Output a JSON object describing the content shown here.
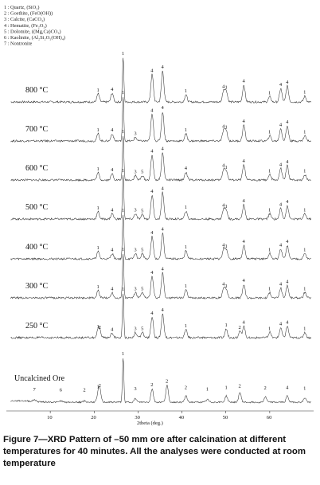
{
  "chart_data": {
    "type": "line",
    "xlabel": "2theta (deg.)",
    "xlim": [
      0,
      70
    ],
    "x_ticks": [
      "10",
      "20",
      "30",
      "40",
      "50",
      "60"
    ],
    "legend": [
      "1 : Quartz, (SiO₂)",
      "2 : Goethite, (FeO(OH))",
      "3 : Calcite, (CaCO₃)",
      "4 : Hematite, (Fe₂O₃)",
      "5 : Dolomite, ((Mg,Ca)CO₃)",
      "6 : Kaolinite, (Al₂Si₂O₅(OH)₄)",
      "7 : Nontronite"
    ],
    "series": [
      {
        "name": "800 °C",
        "peaks": [
          {
            "x": 20.9,
            "h": 0.18,
            "label": "1"
          },
          {
            "x": 24.1,
            "h": 0.2,
            "label": "4"
          },
          {
            "x": 26.6,
            "h": 1.0,
            "label": "1"
          },
          {
            "x": 33.2,
            "h": 0.62,
            "label": "4"
          },
          {
            "x": 35.6,
            "h": 0.7,
            "label": "4"
          },
          {
            "x": 40.9,
            "h": 0.16,
            "label": "1"
          },
          {
            "x": 49.5,
            "h": 0.26,
            "label": "4"
          },
          {
            "x": 50.1,
            "h": 0.24,
            "label": "1"
          },
          {
            "x": 54.1,
            "h": 0.38,
            "label": "4"
          },
          {
            "x": 60.0,
            "h": 0.12,
            "label": "1"
          },
          {
            "x": 62.5,
            "h": 0.3,
            "label": "4"
          },
          {
            "x": 64.0,
            "h": 0.36,
            "label": "4"
          },
          {
            "x": 68.0,
            "h": 0.13,
            "label": "1"
          }
        ]
      },
      {
        "name": "700 °C",
        "peaks": [
          {
            "x": 20.9,
            "h": 0.16,
            "label": "1"
          },
          {
            "x": 24.1,
            "h": 0.16,
            "label": "4"
          },
          {
            "x": 26.6,
            "h": 1.0,
            "label": "1"
          },
          {
            "x": 29.4,
            "h": 0.08,
            "label": "3"
          },
          {
            "x": 33.2,
            "h": 0.6,
            "label": "4"
          },
          {
            "x": 35.6,
            "h": 0.66,
            "label": "4"
          },
          {
            "x": 40.9,
            "h": 0.16,
            "label": "1"
          },
          {
            "x": 49.5,
            "h": 0.24,
            "label": "4"
          },
          {
            "x": 50.1,
            "h": 0.22,
            "label": "1"
          },
          {
            "x": 54.1,
            "h": 0.36,
            "label": "4"
          },
          {
            "x": 60.0,
            "h": 0.12,
            "label": "1"
          },
          {
            "x": 62.5,
            "h": 0.28,
            "label": "4"
          },
          {
            "x": 64.0,
            "h": 0.34,
            "label": "4"
          },
          {
            "x": 68.0,
            "h": 0.12,
            "label": "1"
          }
        ]
      },
      {
        "name": "600 °C",
        "peaks": [
          {
            "x": 20.9,
            "h": 0.16,
            "label": "1"
          },
          {
            "x": 24.1,
            "h": 0.14,
            "label": "4"
          },
          {
            "x": 26.6,
            "h": 1.0,
            "label": "1"
          },
          {
            "x": 29.4,
            "h": 0.1,
            "label": "3"
          },
          {
            "x": 31.0,
            "h": 0.1,
            "label": "5"
          },
          {
            "x": 33.2,
            "h": 0.56,
            "label": "4"
          },
          {
            "x": 35.6,
            "h": 0.62,
            "label": "4"
          },
          {
            "x": 40.9,
            "h": 0.18,
            "label": "4"
          },
          {
            "x": 49.5,
            "h": 0.24,
            "label": "4"
          },
          {
            "x": 50.1,
            "h": 0.2,
            "label": "1"
          },
          {
            "x": 54.1,
            "h": 0.34,
            "label": "4"
          },
          {
            "x": 60.0,
            "h": 0.12,
            "label": "1"
          },
          {
            "x": 62.5,
            "h": 0.26,
            "label": "4"
          },
          {
            "x": 64.0,
            "h": 0.32,
            "label": "4"
          },
          {
            "x": 68.0,
            "h": 0.12,
            "label": "1"
          }
        ]
      },
      {
        "name": "500 °C",
        "peaks": [
          {
            "x": 20.9,
            "h": 0.16,
            "label": "1"
          },
          {
            "x": 24.1,
            "h": 0.12,
            "label": "4"
          },
          {
            "x": 26.6,
            "h": 1.0,
            "label": "1"
          },
          {
            "x": 29.4,
            "h": 0.12,
            "label": "3"
          },
          {
            "x": 31.0,
            "h": 0.1,
            "label": "5"
          },
          {
            "x": 33.2,
            "h": 0.54,
            "label": "4"
          },
          {
            "x": 35.6,
            "h": 0.6,
            "label": "4"
          },
          {
            "x": 40.9,
            "h": 0.18,
            "label": "1"
          },
          {
            "x": 49.5,
            "h": 0.22,
            "label": "4"
          },
          {
            "x": 50.1,
            "h": 0.2,
            "label": "1"
          },
          {
            "x": 54.1,
            "h": 0.32,
            "label": "4"
          },
          {
            "x": 60.0,
            "h": 0.12,
            "label": "1"
          },
          {
            "x": 62.5,
            "h": 0.24,
            "label": "4"
          },
          {
            "x": 64.0,
            "h": 0.3,
            "label": "4"
          },
          {
            "x": 68.0,
            "h": 0.12,
            "label": "1"
          }
        ]
      },
      {
        "name": "400 °C",
        "peaks": [
          {
            "x": 20.9,
            "h": 0.16,
            "label": "1"
          },
          {
            "x": 24.1,
            "h": 0.12,
            "label": "4"
          },
          {
            "x": 26.6,
            "h": 1.0,
            "label": "1"
          },
          {
            "x": 29.4,
            "h": 0.12,
            "label": "3"
          },
          {
            "x": 31.0,
            "h": 0.12,
            "label": "5"
          },
          {
            "x": 33.2,
            "h": 0.5,
            "label": "4"
          },
          {
            "x": 35.6,
            "h": 0.58,
            "label": "4"
          },
          {
            "x": 40.9,
            "h": 0.18,
            "label": "1"
          },
          {
            "x": 49.5,
            "h": 0.22,
            "label": "4"
          },
          {
            "x": 50.1,
            "h": 0.2,
            "label": "1"
          },
          {
            "x": 54.1,
            "h": 0.3,
            "label": "4"
          },
          {
            "x": 60.0,
            "h": 0.12,
            "label": "1"
          },
          {
            "x": 62.5,
            "h": 0.22,
            "label": "4"
          },
          {
            "x": 64.0,
            "h": 0.3,
            "label": "4"
          },
          {
            "x": 68.0,
            "h": 0.12,
            "label": "1"
          }
        ]
      },
      {
        "name": "300 °C",
        "peaks": [
          {
            "x": 20.9,
            "h": 0.16,
            "label": "1"
          },
          {
            "x": 24.1,
            "h": 0.12,
            "label": "4"
          },
          {
            "x": 26.6,
            "h": 1.0,
            "label": "1"
          },
          {
            "x": 29.4,
            "h": 0.12,
            "label": "3"
          },
          {
            "x": 31.0,
            "h": 0.12,
            "label": "5"
          },
          {
            "x": 33.2,
            "h": 0.48,
            "label": "4"
          },
          {
            "x": 35.6,
            "h": 0.56,
            "label": "4"
          },
          {
            "x": 40.9,
            "h": 0.18,
            "label": "1"
          },
          {
            "x": 49.5,
            "h": 0.22,
            "label": "4"
          },
          {
            "x": 50.1,
            "h": 0.18,
            "label": "1"
          },
          {
            "x": 54.1,
            "h": 0.3,
            "label": "4"
          },
          {
            "x": 60.0,
            "h": 0.12,
            "label": "1"
          },
          {
            "x": 62.5,
            "h": 0.22,
            "label": "4"
          },
          {
            "x": 64.0,
            "h": 0.28,
            "label": "4"
          },
          {
            "x": 68.0,
            "h": 0.12,
            "label": "1"
          }
        ]
      },
      {
        "name": "250 °C",
        "peaks": [
          {
            "x": 20.9,
            "h": 0.16,
            "label": "1"
          },
          {
            "x": 21.3,
            "h": 0.14,
            "label": "2"
          },
          {
            "x": 24.1,
            "h": 0.1,
            "label": "4"
          },
          {
            "x": 26.6,
            "h": 1.0,
            "label": "1"
          },
          {
            "x": 29.4,
            "h": 0.12,
            "label": "3"
          },
          {
            "x": 31.0,
            "h": 0.12,
            "label": "5"
          },
          {
            "x": 33.2,
            "h": 0.46,
            "label": "4"
          },
          {
            "x": 35.6,
            "h": 0.54,
            "label": "4"
          },
          {
            "x": 40.9,
            "h": 0.18,
            "label": "1"
          },
          {
            "x": 50.1,
            "h": 0.2,
            "label": "1"
          },
          {
            "x": 53.2,
            "h": 0.14,
            "label": "2"
          },
          {
            "x": 54.1,
            "h": 0.26,
            "label": "4"
          },
          {
            "x": 60.0,
            "h": 0.12,
            "label": "1"
          },
          {
            "x": 62.5,
            "h": 0.22,
            "label": "4"
          },
          {
            "x": 64.0,
            "h": 0.26,
            "label": "4"
          },
          {
            "x": 68.0,
            "h": 0.12,
            "label": "1"
          }
        ]
      },
      {
        "name": "Uncalcined Ore",
        "peaks": [
          {
            "x": 6.4,
            "h": 0.04,
            "label": "7"
          },
          {
            "x": 12.4,
            "h": 0.03,
            "label": "6"
          },
          {
            "x": 17.8,
            "h": 0.03,
            "label": "2"
          },
          {
            "x": 20.9,
            "h": 0.18,
            "label": "1"
          },
          {
            "x": 21.3,
            "h": 0.26,
            "label": "2"
          },
          {
            "x": 26.6,
            "h": 1.0,
            "label": "1"
          },
          {
            "x": 29.4,
            "h": 0.08,
            "label": "3"
          },
          {
            "x": 33.2,
            "h": 0.3,
            "label": "2"
          },
          {
            "x": 36.6,
            "h": 0.38,
            "label": "2"
          },
          {
            "x": 40.9,
            "h": 0.14,
            "label": "2"
          },
          {
            "x": 45.8,
            "h": 0.06,
            "label": "1"
          },
          {
            "x": 50.1,
            "h": 0.14,
            "label": "1"
          },
          {
            "x": 53.2,
            "h": 0.22,
            "label": "2"
          },
          {
            "x": 59.0,
            "h": 0.12,
            "label": "2"
          },
          {
            "x": 64.0,
            "h": 0.14,
            "label": "4"
          },
          {
            "x": 68.0,
            "h": 0.1,
            "label": "1"
          }
        ]
      }
    ]
  },
  "caption": "Figure 7—XRD Pattern of –50 mm ore after calcination at different temperatures for 40 minutes. All the analyses were conducted at room temperature"
}
